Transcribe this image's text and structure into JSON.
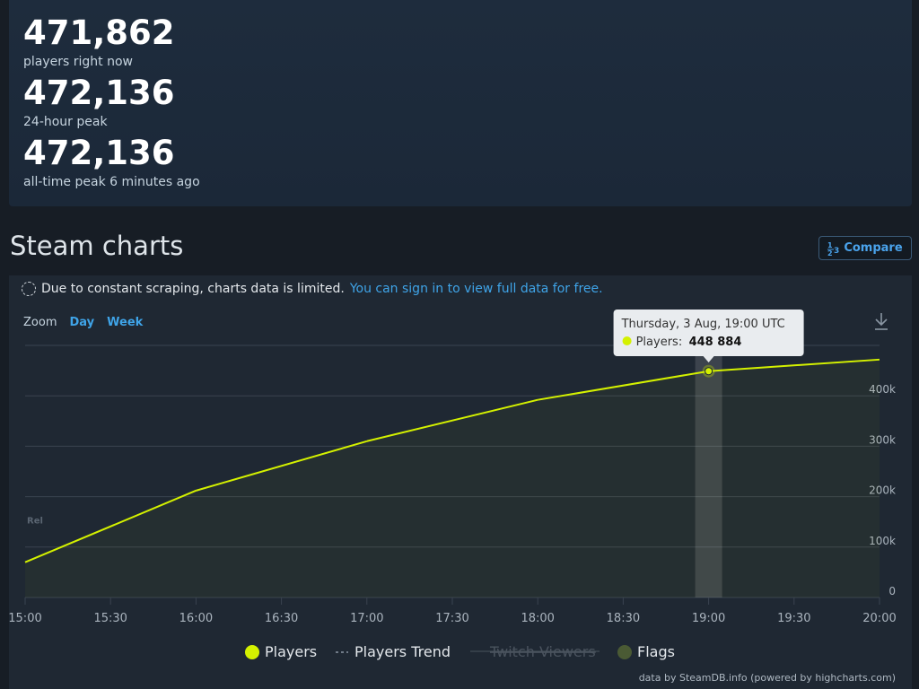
{
  "stats": [
    {
      "value": "471,862",
      "label": "players right now"
    },
    {
      "value": "472,136",
      "label": "24-hour peak"
    },
    {
      "value": "472,136",
      "label": "all-time peak 6 minutes ago"
    }
  ],
  "section_title": "Steam charts",
  "compare_label": "Compare",
  "notice": {
    "text": "Due to constant scraping, charts data is limited.",
    "link": "You can sign in to view full data for free."
  },
  "zoom": {
    "label": "Zoom",
    "options": [
      "Day",
      "Week"
    ]
  },
  "credits": "data by SteamDB.info (powered by highcharts.com)",
  "colors": {
    "players": "#d4f100",
    "grid": "#3a4350",
    "flags": "#4a5a34",
    "link": "#3fa4e8"
  },
  "chart_data": {
    "type": "line",
    "x": [
      "15:00",
      "16:00",
      "17:00",
      "18:00",
      "19:00",
      "20:00"
    ],
    "x_ticks": [
      "15:00",
      "15:30",
      "16:00",
      "16:30",
      "17:00",
      "17:30",
      "18:00",
      "18:30",
      "19:00",
      "19:30",
      "20:00"
    ],
    "y_ticks": [
      "0",
      "100k",
      "200k",
      "300k",
      "400k"
    ],
    "ylim": [
      0,
      500000
    ],
    "series": [
      {
        "name": "Players",
        "values": [
          70000,
          212000,
          310000,
          392000,
          448884,
          471862
        ]
      }
    ],
    "legend": [
      "Players",
      "Players Trend",
      "Twitch Viewers",
      "Flags"
    ],
    "legend_placement": "bottom",
    "flag_label": "Rel",
    "tooltip": {
      "date": "Thursday, 3 Aug, 19:00 UTC",
      "label": "Players:",
      "value": "448 884",
      "index": 4
    }
  }
}
